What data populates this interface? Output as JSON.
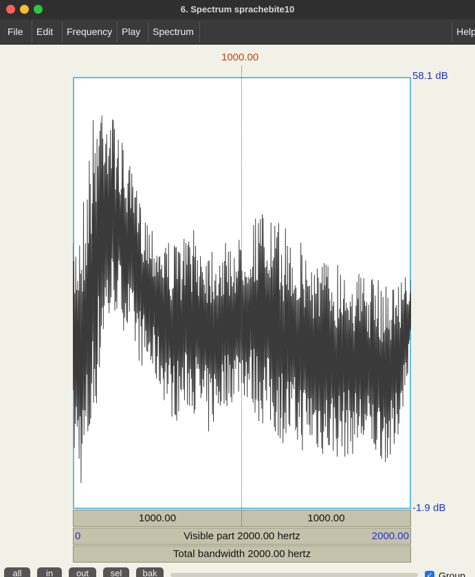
{
  "window": {
    "title": "6. Spectrum sprachebite10"
  },
  "menu": {
    "items": [
      "File",
      "Edit",
      "Frequency",
      "Play",
      "Spectrum",
      "Help"
    ]
  },
  "plot": {
    "top_db": "58.1 dB",
    "bottom_db": "-1.9 dB",
    "cursor_value": "1000.00",
    "line_color": "#3a3a3a",
    "border_color": "#5bbde9"
  },
  "bars": {
    "left_part": "1000.00",
    "right_part": "1000.00",
    "visible_start": "0",
    "visible_label": "Visible part 2000.00 hertz",
    "visible_end": "2000.00",
    "total_label": "Total bandwidth 2000.00 hertz"
  },
  "bottom": {
    "buttons": [
      "all",
      "in",
      "out",
      "sel",
      "bak"
    ],
    "group_label": "Group",
    "group_checked": true
  },
  "chart_data": {
    "type": "line",
    "xlim": [
      0,
      2000
    ],
    "ylim": [
      -1.9,
      58.1
    ],
    "xunit": "hertz",
    "yunit": "dB",
    "cursor_x": 1000,
    "envelope": {
      "x": [
        0,
        60,
        120,
        180,
        250,
        320,
        400,
        500,
        600,
        700,
        800,
        900,
        1000,
        1100,
        1200,
        1300,
        1400,
        1500,
        1600,
        1700,
        1800,
        1900,
        2000
      ],
      "upper": [
        35,
        42,
        53,
        58,
        52,
        47,
        41,
        37,
        35,
        37,
        36,
        35,
        36,
        40,
        38,
        37,
        34,
        33,
        33,
        31,
        30,
        30,
        31
      ],
      "lower": [
        5,
        0,
        8,
        20,
        25,
        22,
        18,
        15,
        10,
        12,
        8,
        12,
        14,
        10,
        8,
        6,
        6,
        5,
        5,
        6,
        5,
        4,
        20
      ]
    }
  }
}
